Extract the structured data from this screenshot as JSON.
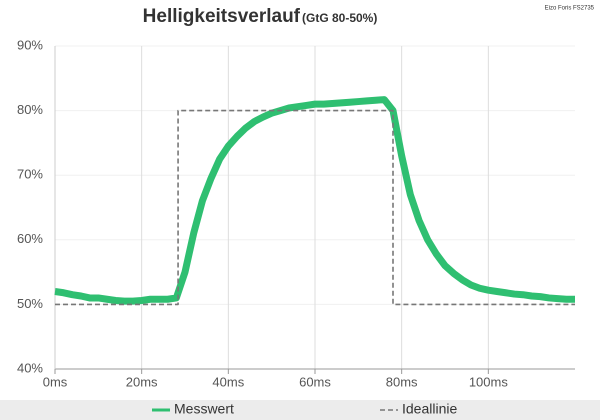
{
  "chart_data": {
    "type": "line",
    "title": "Helligkeitsverlauf",
    "subtitle": "(GtG 80-50%)",
    "annotation": "Eizo Foris FS2735",
    "xlim": [
      0,
      120
    ],
    "xticks": [
      {
        "value": 0,
        "label": "0ms"
      },
      {
        "value": 20,
        "label": "20ms"
      },
      {
        "value": 40,
        "label": "40ms"
      },
      {
        "value": 60,
        "label": "60ms"
      },
      {
        "value": 80,
        "label": "80ms"
      },
      {
        "value": 100,
        "label": "100ms"
      }
    ],
    "ylim": [
      40,
      90
    ],
    "yticks": [
      {
        "value": 40,
        "label": "40%"
      },
      {
        "value": 50,
        "label": "50%"
      },
      {
        "value": 60,
        "label": "60%"
      },
      {
        "value": 70,
        "label": "70%"
      },
      {
        "value": 80,
        "label": "80%"
      },
      {
        "value": 90,
        "label": "90%"
      }
    ],
    "grid": true,
    "legend": "bottom",
    "series": [
      {
        "name": "Messwert",
        "color": "#2fbf71",
        "style": "solid",
        "x": [
          0,
          2,
          4,
          6,
          8,
          10,
          12,
          14,
          16,
          18,
          20,
          22,
          24,
          26,
          28,
          30,
          32,
          34,
          36,
          38,
          40,
          42,
          44,
          46,
          48,
          50,
          52,
          54,
          56,
          58,
          60,
          62,
          64,
          66,
          68,
          70,
          72,
          74,
          76,
          78,
          80,
          82,
          84,
          86,
          88,
          90,
          92,
          94,
          96,
          98,
          100,
          102,
          104,
          106,
          108,
          110,
          112,
          114,
          116,
          118,
          120
        ],
        "values": [
          52,
          51.8,
          51.5,
          51.3,
          51,
          51,
          50.8,
          50.6,
          50.5,
          50.5,
          50.6,
          50.8,
          50.8,
          50.8,
          51,
          55,
          61,
          66,
          69.5,
          72.5,
          74.5,
          76,
          77.3,
          78.3,
          79,
          79.6,
          80,
          80.4,
          80.6,
          80.8,
          81,
          81,
          81.1,
          81.2,
          81.3,
          81.4,
          81.5,
          81.6,
          81.7,
          80,
          73,
          67,
          63,
          60,
          57.8,
          56,
          54.8,
          53.8,
          53,
          52.5,
          52.2,
          52,
          51.8,
          51.6,
          51.5,
          51.3,
          51.2,
          51,
          50.9,
          50.8,
          50.8
        ]
      },
      {
        "name": "Ideallinie",
        "color": "#777777",
        "style": "dashed",
        "x": [
          0,
          28.4,
          28.4,
          78,
          78,
          120
        ],
        "values": [
          50,
          50,
          80,
          80,
          50,
          50
        ]
      }
    ]
  }
}
